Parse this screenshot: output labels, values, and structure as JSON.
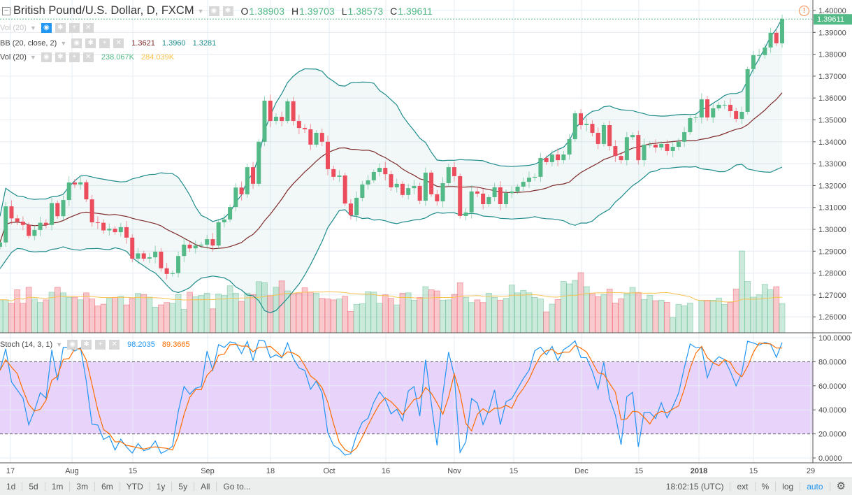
{
  "header": {
    "symbol": "British Pound/U.S. Dollar, D, FXCM",
    "o_label": "O",
    "o": "1.38903",
    "h_label": "H",
    "h": "1.39703",
    "l_label": "L",
    "l": "1.38573",
    "c_label": "C",
    "c": "1.39611"
  },
  "indicators": {
    "vol_hidden": {
      "name": "Vol (20)"
    },
    "bb": {
      "name": "BB (20, close, 2)",
      "basis": "1.3621",
      "upper": "1.3960",
      "lower": "1.3281"
    },
    "vol": {
      "name": "Vol (20)",
      "volume": "238.067K",
      "ma": "284.039K"
    },
    "stoch": {
      "name": "Stoch (14, 3, 1)",
      "k": "98.2035",
      "d": "89.3665"
    }
  },
  "price_axis": {
    "ticks": [
      "1.40000",
      "1.39000",
      "1.38000",
      "1.37000",
      "1.36000",
      "1.35000",
      "1.34000",
      "1.33000",
      "1.32000",
      "1.31000",
      "1.30000",
      "1.29000",
      "1.28000",
      "1.27000",
      "1.26000"
    ],
    "last_price": "1.39611"
  },
  "stoch_axis": {
    "ticks": [
      "100.0000",
      "80.0000",
      "60.0000",
      "40.0000",
      "20.0000",
      "0.0000"
    ]
  },
  "time_axis": {
    "ticks": [
      "17",
      "Aug",
      "15",
      "Sep",
      "18",
      "Oct",
      "16",
      "Nov",
      "15",
      "Dec",
      "15",
      "2018",
      "15",
      "29"
    ]
  },
  "toolbar": {
    "ranges": [
      "1d",
      "5d",
      "1m",
      "3m",
      "6m",
      "YTD",
      "1y",
      "5y",
      "All"
    ],
    "goto": "Go to...",
    "clock": "18:02:15 (UTC)",
    "ext": "ext",
    "percent": "%",
    "log": "log",
    "auto": "auto"
  },
  "colors": {
    "up": "#53b987",
    "down": "#eb4d5c",
    "bb_band": "#1f8c8c",
    "bb_basis": "#7f2a2a",
    "vol_ma": "#f8c24e",
    "stoch_k": "#2196f3",
    "stoch_d": "#ff6d00",
    "stoch_band": "#e8d3fb"
  },
  "chart_data": {
    "type": "candlestick",
    "price_range": [
      1.255,
      1.4
    ],
    "stoch_levels": [
      20,
      80
    ],
    "close": [
      1.294,
      1.3105,
      1.305,
      1.3035,
      1.302,
      1.297,
      1.2997,
      1.303,
      1.302,
      1.312,
      1.306,
      1.3134,
      1.3214,
      1.3205,
      1.3215,
      1.3137,
      1.3032,
      1.303,
      1.2995,
      1.3003,
      1.2987,
      1.301,
      1.2962,
      1.2866,
      1.289,
      1.2866,
      1.2872,
      1.2898,
      1.2822,
      1.2796,
      1.28,
      1.2878,
      1.293,
      1.2913,
      1.2926,
      1.293,
      1.2955,
      1.2926,
      1.3032,
      1.3045,
      1.3102,
      1.3191,
      1.316,
      1.3284,
      1.3208,
      1.34,
      1.3588,
      1.3495,
      1.3514,
      1.3495,
      1.3585,
      1.3495,
      1.3463,
      1.3457,
      1.3387,
      1.3441,
      1.34,
      1.3275,
      1.324,
      1.3246,
      1.3118,
      1.3064,
      1.3144,
      1.3205,
      1.3224,
      1.3262,
      1.3281,
      1.3252,
      1.3192,
      1.3208,
      1.3157,
      1.3188,
      1.3198,
      1.3131,
      1.3259,
      1.316,
      1.3128,
      1.3211,
      1.3284,
      1.3243,
      1.3061,
      1.3077,
      1.3173,
      1.3163,
      1.3115,
      1.3147,
      1.3192,
      1.3115,
      1.3166,
      1.3173,
      1.3195,
      1.3217,
      1.3236,
      1.324,
      1.3326,
      1.3307,
      1.3342,
      1.3316,
      1.3342,
      1.3412,
      1.353,
      1.3476,
      1.3482,
      1.3441,
      1.339,
      1.3476,
      1.338,
      1.3335,
      1.3316,
      1.3421,
      1.3431,
      1.3316,
      1.3387,
      1.3387,
      1.3374,
      1.339,
      1.3358,
      1.3377,
      1.34,
      1.3444,
      1.3508,
      1.3511,
      1.3594,
      1.3511,
      1.3553,
      1.3569,
      1.3569,
      1.354,
      1.3505,
      1.3537,
      1.3732,
      1.3796,
      1.3796,
      1.3831,
      1.3898,
      1.385,
      1.3961
    ],
    "volume_k": [
      268,
      268,
      240,
      350,
      240,
      370,
      275,
      246,
      268,
      330,
      370,
      325,
      288,
      288,
      268,
      325,
      275,
      218,
      233,
      280,
      288,
      297,
      227,
      280,
      320,
      312,
      290,
      208,
      227,
      246,
      240,
      312,
      190,
      330,
      293,
      303,
      322,
      195,
      316,
      303,
      382,
      322,
      256,
      322,
      312,
      416,
      408,
      303,
      370,
      422,
      341,
      322,
      322,
      366,
      331,
      322,
      280,
      275,
      268,
      275,
      297,
      174,
      231,
      237,
      335,
      331,
      240,
      309,
      280,
      227,
      322,
      325,
      265,
      288,
      375,
      350,
      341,
      265,
      268,
      312,
      407,
      288,
      246,
      268,
      246,
      322,
      288,
      265,
      280,
      388,
      325,
      345,
      325,
      288,
      275,
      170,
      233,
      270,
      418,
      398,
      426,
      489,
      375,
      322,
      294,
      312,
      356,
      242,
      276,
      318,
      369,
      328,
      271,
      305,
      261,
      265,
      248,
      125,
      231,
      220,
      242,
      0,
      265,
      265,
      265,
      283,
      231,
      248,
      356,
      665,
      418,
      290,
      309,
      394,
      350,
      375,
      238.067
    ]
  }
}
